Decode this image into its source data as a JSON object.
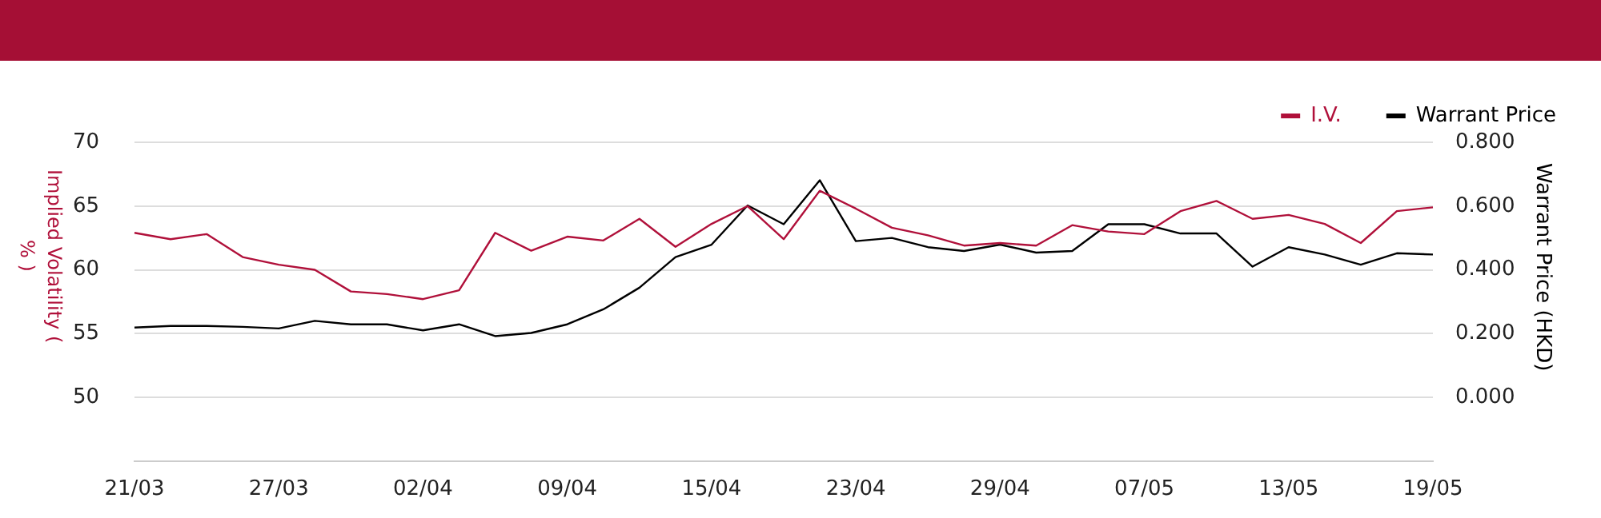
{
  "chart_data": {
    "type": "line",
    "xlabel": null,
    "ylabel": "Implied Volatility ( % )",
    "y2label": "Warrant Price (HKD)",
    "categories": [
      "21/03",
      null,
      null,
      null,
      "27/03",
      null,
      null,
      null,
      "02/04",
      null,
      null,
      null,
      "09/04",
      null,
      null,
      null,
      "15/04",
      null,
      null,
      null,
      "23/04",
      null,
      null,
      null,
      "29/04",
      null,
      null,
      null,
      "07/05",
      null,
      null,
      null,
      "13/05",
      null,
      null,
      null,
      "19/05"
    ],
    "series": [
      {
        "name": "I.V.",
        "color": "#b0103a",
        "values": [
          62.9,
          62.4,
          62.8,
          61.0,
          60.4,
          60.0,
          58.3,
          58.1,
          57.7,
          58.4,
          62.9,
          61.5,
          62.6,
          62.3,
          64.0,
          61.8,
          63.6,
          65.0,
          62.4,
          66.2,
          64.8,
          63.3,
          62.7,
          61.9,
          62.1,
          61.9,
          63.5,
          63.0,
          62.8,
          64.6,
          65.4,
          64.0,
          64.3,
          63.6,
          62.1,
          64.6,
          64.9
        ]
      },
      {
        "name": "Warrant Price",
        "color": "#000000",
        "axis": "y2",
        "values": [
          0.219,
          0.224,
          0.224,
          0.221,
          0.216,
          0.24,
          0.229,
          0.229,
          0.21,
          0.229,
          0.192,
          0.202,
          0.229,
          0.276,
          0.344,
          0.44,
          0.479,
          0.602,
          0.543,
          0.681,
          0.49,
          0.5,
          0.471,
          0.459,
          0.479,
          0.454,
          0.459,
          0.543,
          0.543,
          0.514,
          0.514,
          0.41,
          0.471,
          0.448,
          0.416,
          0.452,
          0.448
        ]
      }
    ],
    "ylim": [
      45,
      70
    ],
    "yticks": [
      50,
      55,
      60,
      65,
      70
    ],
    "y2lim": [
      -0.2,
      0.8
    ],
    "y2ticks": [
      {
        "value": 0,
        "label": "0.000"
      },
      {
        "value": 0.2,
        "label": "0.200"
      },
      {
        "value": 0.4,
        "label": "0.400"
      },
      {
        "value": 0.6,
        "label": "0.600"
      },
      {
        "value": 0.8,
        "label": "0.800"
      }
    ],
    "grid": "y",
    "legend": "top right",
    "marker": "none",
    "line_style": "solid"
  }
}
